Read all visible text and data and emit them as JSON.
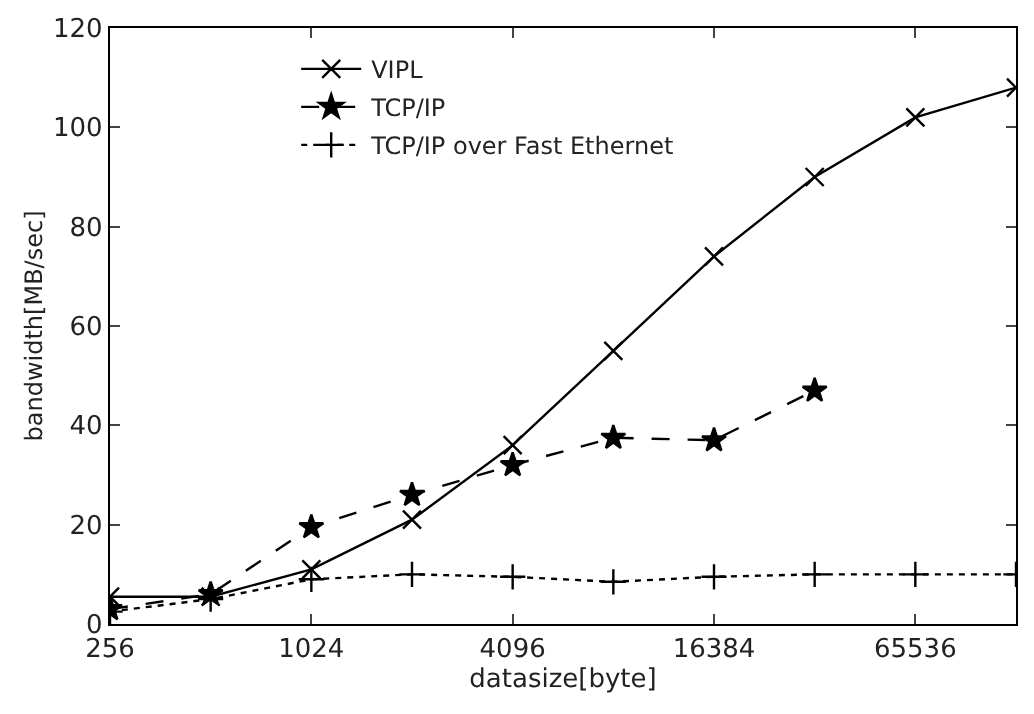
{
  "chart_data": {
    "type": "line",
    "xlabel": "datasize[byte]",
    "ylabel": "bandwidth[MB/sec]",
    "log": "x",
    "xlim": [
      256,
      131072
    ],
    "xticks": [
      256,
      1024,
      4096,
      16384,
      65536
    ],
    "ylim": [
      0,
      120
    ],
    "yticks": [
      0,
      20,
      40,
      60,
      80,
      100,
      120
    ],
    "legend": "top left",
    "series": [
      {
        "name": "VIPL",
        "color": "#000000",
        "marker": "x",
        "line_style": "solid",
        "x": [
          256,
          512,
          1024,
          2048,
          4096,
          8192,
          16384,
          32768,
          65536,
          131072
        ],
        "values": [
          5.5,
          5.5,
          11,
          21,
          36,
          55,
          74,
          90,
          102,
          108
        ]
      },
      {
        "name": "TCP/IP",
        "color": "#000000",
        "marker": "star",
        "line_style": "dashed",
        "x": [
          256,
          512,
          1024,
          2048,
          4096,
          8192,
          16384,
          32768
        ],
        "values": [
          3,
          6,
          19.5,
          26,
          32,
          37.5,
          37,
          47
        ]
      },
      {
        "name": "TCP/IP over Fast Ethernet",
        "color": "#000000",
        "marker": "cross",
        "line_style": "dotted",
        "x": [
          256,
          512,
          1024,
          2048,
          4096,
          8192,
          16384,
          32768,
          65536,
          131072
        ],
        "values": [
          2.5,
          5,
          9,
          10,
          9.5,
          8.5,
          9.5,
          10,
          10,
          10
        ]
      }
    ]
  }
}
